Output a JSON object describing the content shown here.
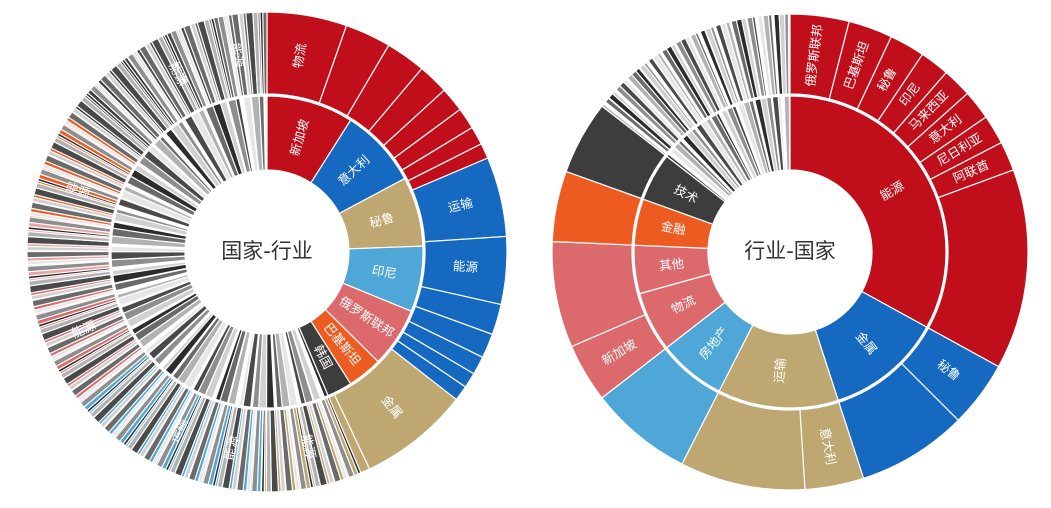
{
  "colors": {
    "red": "#C00F1B",
    "blue": "#1569C1",
    "tan": "#BEA771",
    "lightblue": "#4EA7D6",
    "salmon": "#DC6A6C",
    "orange": "#EE5B21",
    "charcoal": "#3D3D3D",
    "pink_light": "#EAA4A4",
    "greys": [
      "#2C2C2C",
      "#4A4A4A",
      "#6A6A6A",
      "#8E8E8E",
      "#B2B2B2",
      "#D0D0D0",
      "#E6E6E6"
    ]
  },
  "chart_data": [
    {
      "type": "sunburst",
      "title": "国家-行业",
      "inner_ring": [
        {
          "label": "新加坡",
          "value": 9.0,
          "color": "red"
        },
        {
          "label": "意大利",
          "value": 8.2,
          "color": "blue"
        },
        {
          "label": "秘鲁",
          "value": 7.2,
          "color": "tan"
        },
        {
          "label": "印尼",
          "value": 6.8,
          "color": "lightblue"
        },
        {
          "label": "俄罗斯联邦",
          "value": 6.2,
          "color": "salmon"
        },
        {
          "label": "巴基斯坦",
          "value": 3.6,
          "color": "orange"
        },
        {
          "label": "韩国",
          "value": 2.6,
          "color": "charcoal"
        },
        {
          "label": "",
          "value": 56.4,
          "color": "grey"
        }
      ],
      "outer_ring": [
        {
          "label": "物流",
          "value": 2.6,
          "parent": "新加坡",
          "color": "red"
        },
        {
          "label": "",
          "value": 1.5,
          "parent": "新加坡",
          "color": "red"
        },
        {
          "label": "",
          "value": 1.3,
          "parent": "新加坡",
          "color": "red"
        },
        {
          "label": "",
          "value": 1.0,
          "parent": "新加坡",
          "color": "red"
        },
        {
          "label": "",
          "value": 0.8,
          "parent": "新加坡",
          "color": "red"
        },
        {
          "label": "",
          "value": 0.7,
          "parent": "新加坡",
          "color": "red"
        },
        {
          "label": "",
          "value": 0.6,
          "parent": "新加坡",
          "color": "red"
        },
        {
          "label": "",
          "value": 0.5,
          "parent": "新加坡",
          "color": "red"
        },
        {
          "label": "运输",
          "value": 2.6,
          "parent": "意大利",
          "color": "blue"
        },
        {
          "label": "能源",
          "value": 2.2,
          "parent": "意大利",
          "color": "blue"
        },
        {
          "label": "",
          "value": 1.0,
          "parent": "意大利",
          "color": "blue"
        },
        {
          "label": "",
          "value": 0.8,
          "parent": "意大利",
          "color": "blue"
        },
        {
          "label": "",
          "value": 0.6,
          "parent": "意大利",
          "color": "blue"
        },
        {
          "label": "",
          "value": 0.5,
          "parent": "意大利",
          "color": "blue"
        },
        {
          "label": "",
          "value": 0.5,
          "parent": "意大利",
          "color": "blue"
        },
        {
          "label": "金属",
          "value": 3.6,
          "parent": "秘鲁",
          "color": "tan"
        },
        {
          "label": "能源",
          "value": 3.6,
          "parent": "秘鲁",
          "color": "tan"
        },
        {
          "label": "能源",
          "value": 2.3,
          "parent": "印尼",
          "color": "lightblue"
        },
        {
          "label": "运输",
          "value": 2.0,
          "parent": "印尼",
          "color": "lightblue"
        },
        {
          "label": "",
          "value": 1.3,
          "parent": "印尼",
          "color": "lightblue"
        },
        {
          "label": "",
          "value": 0.7,
          "parent": "印尼",
          "color": "lightblue"
        },
        {
          "label": "",
          "value": 0.5,
          "parent": "印尼",
          "color": "lightblue"
        },
        {
          "label": "能源",
          "value": 4.0,
          "parent": "俄罗斯联邦",
          "color": "salmon"
        },
        {
          "label": "",
          "value": 1.4,
          "parent": "俄罗斯联邦",
          "color": "pink_light"
        },
        {
          "label": "",
          "value": 0.8,
          "parent": "俄罗斯联邦",
          "color": "pink_light"
        },
        {
          "label": "能源",
          "value": 2.6,
          "parent": "巴基斯坦",
          "color": "orange"
        },
        {
          "label": "",
          "value": 0.5,
          "parent": "巴基斯坦",
          "color": "orange"
        },
        {
          "label": "",
          "value": 0.5,
          "parent": "巴基斯坦",
          "color": "orange"
        },
        {
          "label": "",
          "value": 2.6,
          "parent": "韩国",
          "color": "charcoal"
        },
        {
          "label": "能源",
          "value": 2.4,
          "parent": "",
          "color": "grey"
        },
        {
          "label": "能源",
          "value": 2.4,
          "parent": "",
          "color": "grey"
        }
      ]
    },
    {
      "type": "sunburst",
      "title": "行业-国家",
      "inner_ring": [
        {
          "label": "能源",
          "value": 33.0,
          "color": "red"
        },
        {
          "label": "金属",
          "value": 12.0,
          "color": "blue"
        },
        {
          "label": "运输",
          "value": 12.5,
          "color": "tan"
        },
        {
          "label": "房地产",
          "value": 7.0,
          "color": "lightblue"
        },
        {
          "label": "物流",
          "value": 6.2,
          "color": "salmon"
        },
        {
          "label": "其他",
          "value": 5.0,
          "color": "salmon"
        },
        {
          "label": "金融",
          "value": 4.8,
          "color": "orange"
        },
        {
          "label": "技术",
          "value": 5.0,
          "color": "charcoal"
        },
        {
          "label": "",
          "value": 14.5,
          "color": "grey"
        }
      ],
      "outer_ring": [
        {
          "label": "俄罗斯联邦",
          "value": 4.0,
          "parent": "能源",
          "color": "red"
        },
        {
          "label": "巴基斯坦",
          "value": 3.0,
          "parent": "能源",
          "color": "red"
        },
        {
          "label": "秘鲁",
          "value": 2.4,
          "parent": "能源",
          "color": "red"
        },
        {
          "label": "印尼",
          "value": 2.0,
          "parent": "能源",
          "color": "red"
        },
        {
          "label": "马来西亚",
          "value": 2.0,
          "parent": "能源",
          "color": "red"
        },
        {
          "label": "意大利",
          "value": 2.0,
          "parent": "能源",
          "color": "red"
        },
        {
          "label": "尼日利亚",
          "value": 2.0,
          "parent": "能源",
          "color": "red"
        },
        {
          "label": "阿联酋",
          "value": 2.0,
          "parent": "能源",
          "color": "red"
        },
        {
          "label": "",
          "value": 13.6,
          "parent": "能源",
          "color": "red"
        },
        {
          "label": "秘鲁",
          "value": 4.5,
          "parent": "金属",
          "color": "blue"
        },
        {
          "label": "",
          "value": 7.5,
          "parent": "金属",
          "color": "blue"
        },
        {
          "label": "意大利",
          "value": 4.0,
          "parent": "运输",
          "color": "tan"
        },
        {
          "label": "",
          "value": 8.5,
          "parent": "运输",
          "color": "tan"
        },
        {
          "label": "",
          "value": 7.0,
          "parent": "房地产",
          "color": "lightblue"
        },
        {
          "label": "新加坡",
          "value": 4.0,
          "parent": "物流",
          "color": "salmon"
        },
        {
          "label": "",
          "value": 7.2,
          "parent": "物流",
          "color": "salmon"
        },
        {
          "label": "",
          "value": 4.8,
          "parent": "金融",
          "color": "orange"
        },
        {
          "label": "",
          "value": 5.0,
          "parent": "技术",
          "color": "charcoal"
        },
        {
          "label": "",
          "value": 14.5,
          "parent": "",
          "color": "grey"
        }
      ]
    }
  ]
}
